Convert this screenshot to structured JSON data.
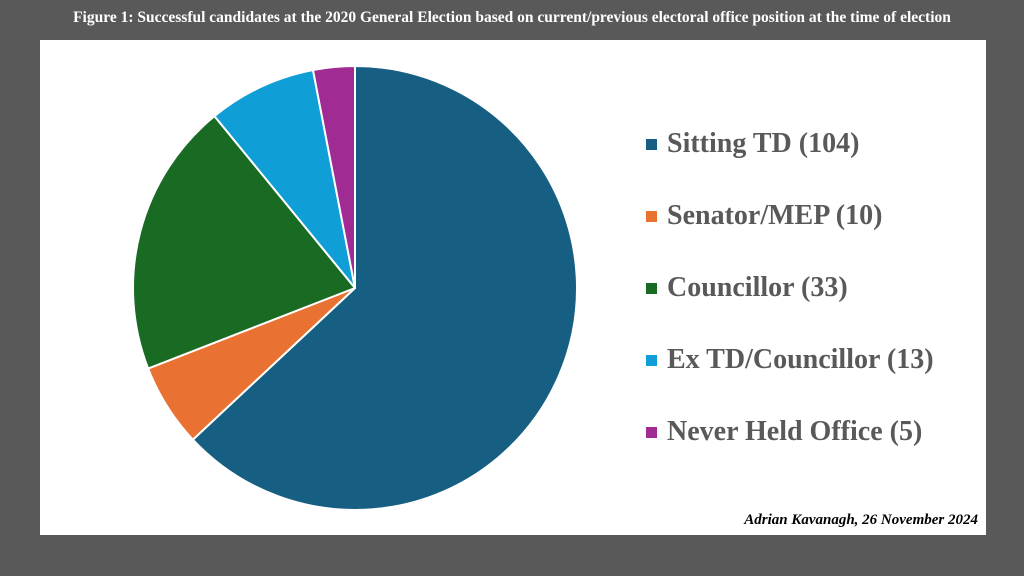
{
  "figure_title": "Figure 1: Successful candidates at the 2020 General Election based on current/previous electoral office position at the time of election",
  "credit": "Adrian Kavanagh, 26 November 2024",
  "chart_data": {
    "type": "pie",
    "title": "Figure 1: Successful candidates at the 2020 General Election based on current/previous electoral office position at the time of election",
    "legend_position": "right",
    "slices": [
      {
        "label": "Sitting TD (104)",
        "value": 104,
        "color": "#175f82"
      },
      {
        "label": "Senator/MEP (10)",
        "value": 10,
        "color": "#e97132"
      },
      {
        "label": "Councillor (33)",
        "value": 33,
        "color": "#196b24"
      },
      {
        "label": "Ex TD/Councillor (13)",
        "value": 13,
        "color": "#0f9ed5"
      },
      {
        "label": "Never Held Office (5)",
        "value": 5,
        "color": "#a02b93"
      }
    ]
  }
}
